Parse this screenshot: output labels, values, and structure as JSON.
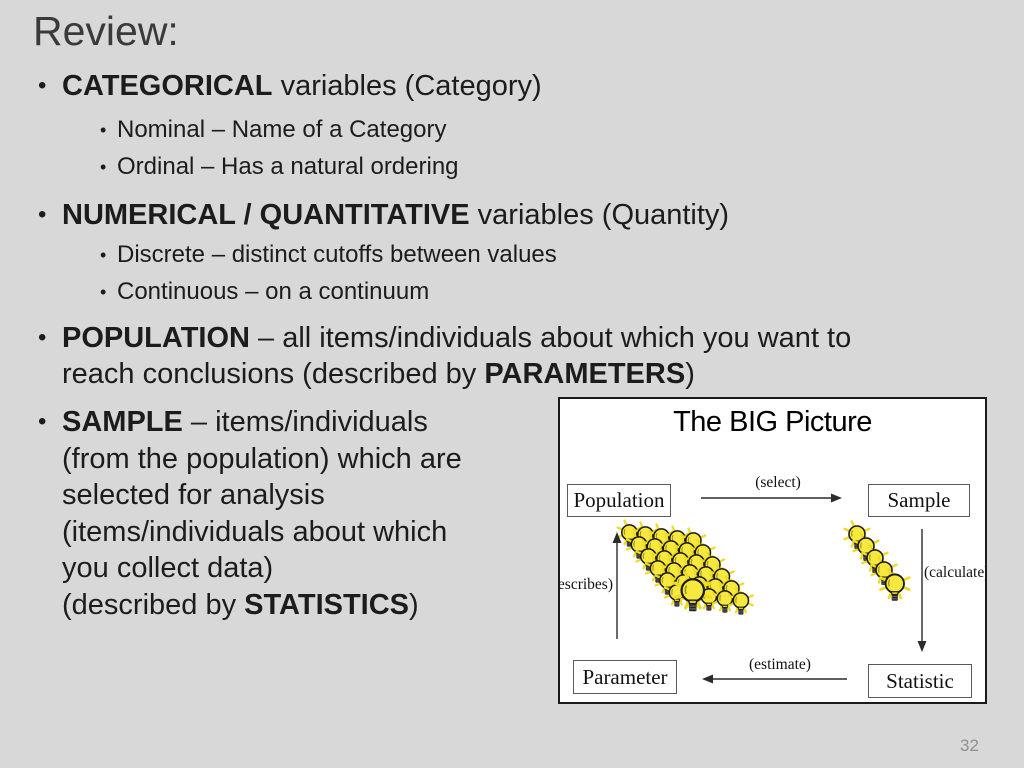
{
  "title": "Review:",
  "page_number": "32",
  "bullets": [
    {
      "level": 1,
      "lines": [
        [
          {
            "t": "CATEGORICAL",
            "b": true
          },
          {
            "t": " variables (Category)"
          }
        ]
      ]
    },
    {
      "level": 2,
      "lines": [
        [
          {
            "t": "Nominal – Name of a Category"
          }
        ]
      ]
    },
    {
      "level": 2,
      "lines": [
        [
          {
            "t": "Ordinal – Has a natural ordering"
          }
        ]
      ]
    },
    {
      "level": 1,
      "lines": [
        [
          {
            "t": "NUMERICAL / QUANTITATIVE",
            "b": true
          },
          {
            "t": " variables (Quantity)"
          }
        ]
      ]
    },
    {
      "level": 2,
      "lines": [
        [
          {
            "t": "Discrete – distinct cutoffs between values"
          }
        ]
      ]
    },
    {
      "level": 2,
      "lines": [
        [
          {
            "t": "Continuous – on a continuum"
          }
        ]
      ]
    },
    {
      "level": 1,
      "lines": [
        [
          {
            "t": "POPULATION",
            "b": true
          },
          {
            "t": " – all items/individuals about which you want to"
          }
        ],
        [
          {
            "t": "reach conclusions (described by "
          },
          {
            "t": "PARAMETERS",
            "b": true
          },
          {
            "t": ")"
          }
        ]
      ]
    },
    {
      "level": 1,
      "lines": [
        [
          {
            "t": "SAMPLE",
            "b": true
          },
          {
            "t": " – items/individuals"
          }
        ],
        [
          {
            "t": "(from the population) which are"
          }
        ],
        [
          {
            "t": "selected for analysis"
          }
        ],
        [
          {
            "t": "(items/individuals about which"
          }
        ],
        [
          {
            "t": "you collect data)"
          }
        ],
        [
          {
            "t": "(described by "
          },
          {
            "t": "STATISTICS",
            "b": true
          },
          {
            "t": ")"
          }
        ]
      ]
    }
  ],
  "diagram": {
    "title": "The BIG Picture",
    "boxes": {
      "population": "Population",
      "sample": "Sample",
      "parameter": "Parameter",
      "statistic": "Statistic"
    },
    "arrow_labels": {
      "select": "(select)",
      "calculate": "(calculate)",
      "estimate": "(estimate)",
      "describes": "(describes)"
    },
    "bulb_clusters": {
      "population_cluster": {
        "rows": 6,
        "cols": 5
      },
      "sample_cluster": {
        "count": 5
      }
    },
    "colors": {
      "bulb_yellow": "#f6e83e",
      "bulb_ray": "#eedc1f",
      "bulb_base": "#262626",
      "arrow": "#2b2b2b"
    }
  },
  "colors": {
    "background": "#d8d8d8",
    "body_text": "#1c1c1c",
    "title_text": "#3a3a3a",
    "page_number": "#8f8f8f",
    "diagram_bg": "#ffffff"
  }
}
